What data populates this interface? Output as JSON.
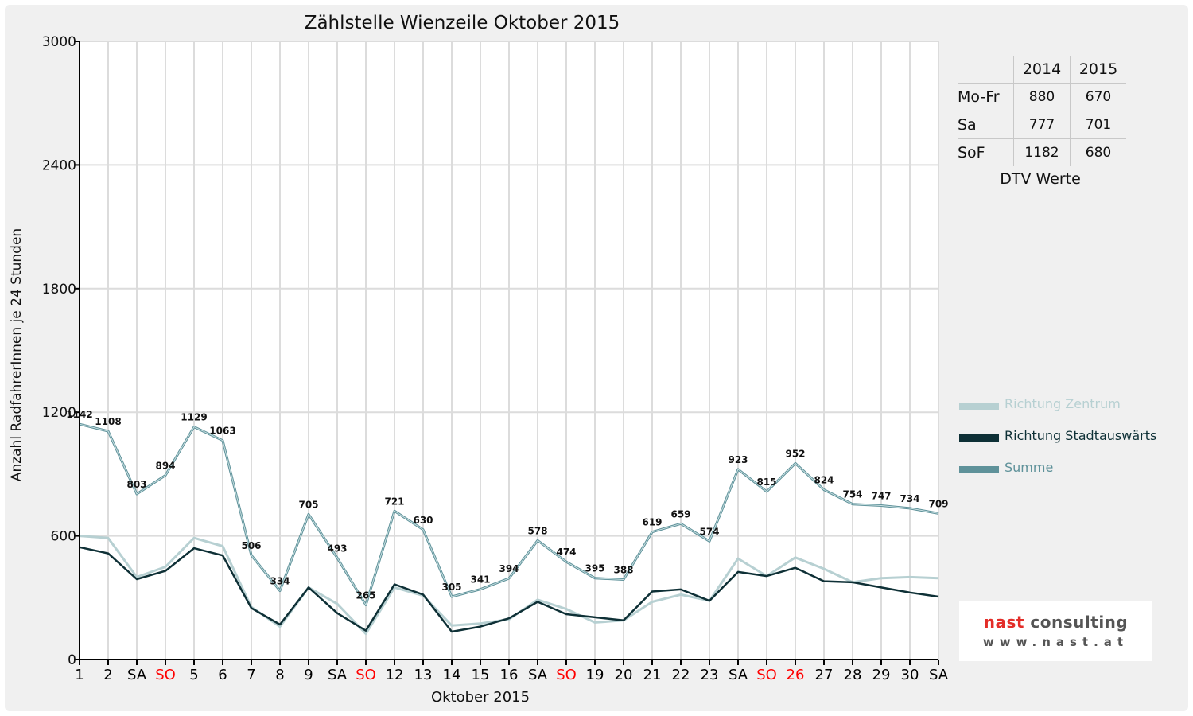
{
  "chart_data": {
    "type": "line",
    "title": "Zählstelle Wienzeile Oktober 2015",
    "xlabel": "Oktober 2015",
    "ylabel": "Anzahl RadfahrerInnen je 24 Stunden",
    "ylim": [
      0,
      3000
    ],
    "yticks": [
      0,
      600,
      1200,
      1800,
      2400,
      3000
    ],
    "categories": [
      "1",
      "2",
      "SA",
      "SO",
      "5",
      "6",
      "7",
      "8",
      "9",
      "SA",
      "SO",
      "12",
      "13",
      "14",
      "15",
      "16",
      "SA",
      "SO",
      "19",
      "20",
      "21",
      "22",
      "23",
      "SA",
      "SO",
      "26",
      "27",
      "28",
      "29",
      "30",
      "SA"
    ],
    "category_colors": [
      "#000000",
      "#000000",
      "#000000",
      "#ff0000",
      "#000000",
      "#000000",
      "#000000",
      "#000000",
      "#000000",
      "#000000",
      "#ff0000",
      "#000000",
      "#000000",
      "#000000",
      "#000000",
      "#000000",
      "#000000",
      "#ff0000",
      "#000000",
      "#000000",
      "#000000",
      "#000000",
      "#000000",
      "#000000",
      "#ff0000",
      "#ff0000",
      "#000000",
      "#000000",
      "#000000",
      "#000000",
      "#000000"
    ],
    "grid": true,
    "legend_position": "right",
    "series": [
      {
        "name": "Richtung Zentrum",
        "color": "#b7d0d2",
        "values": [
          600,
          590,
          400,
          450,
          590,
          550,
          255,
          160,
          350,
          270,
          125,
          350,
          310,
          165,
          175,
          195,
          290,
          245,
          180,
          190,
          280,
          315,
          285,
          490,
          405,
          495,
          440,
          375,
          395,
          400,
          395
        ]
      },
      {
        "name": "Richtung Stadtauswärts",
        "color": "#0e3036",
        "values": [
          545,
          515,
          390,
          430,
          540,
          505,
          250,
          170,
          350,
          225,
          140,
          365,
          315,
          135,
          160,
          200,
          280,
          220,
          205,
          190,
          330,
          340,
          285,
          425,
          405,
          445,
          380,
          375,
          350,
          325,
          305
        ]
      },
      {
        "name": "Summe",
        "color": "#5f929a",
        "values": [
          1142,
          1108,
          803,
          894,
          1129,
          1063,
          506,
          334,
          705,
          493,
          265,
          721,
          630,
          305,
          341,
          394,
          578,
          474,
          395,
          388,
          619,
          659,
          574,
          923,
          815,
          952,
          824,
          754,
          747,
          734,
          709
        ],
        "labels": [
          "1142",
          "1108",
          "803",
          "894",
          "1129",
          "1063",
          "506",
          "334",
          "705",
          "493",
          "265",
          "721",
          "630",
          "305",
          "341",
          "394",
          "578",
          "474",
          "395",
          "388",
          "619",
          "659",
          "574",
          "923",
          "815",
          "952",
          "824",
          "754",
          "747",
          "734",
          "709"
        ]
      }
    ]
  },
  "dtv": {
    "col_headers": [
      "2014",
      "2015"
    ],
    "rows": [
      {
        "label": "Mo-Fr",
        "v2014": "880",
        "v2015": "670"
      },
      {
        "label": "Sa",
        "v2014": "777",
        "v2015": "701"
      },
      {
        "label": "SoF",
        "v2014": "1182",
        "v2015": "680"
      }
    ],
    "caption": "DTV Werte"
  },
  "logo": {
    "name_part1": "nast",
    "name_part2": " consulting",
    "url": "www.nast.at"
  }
}
